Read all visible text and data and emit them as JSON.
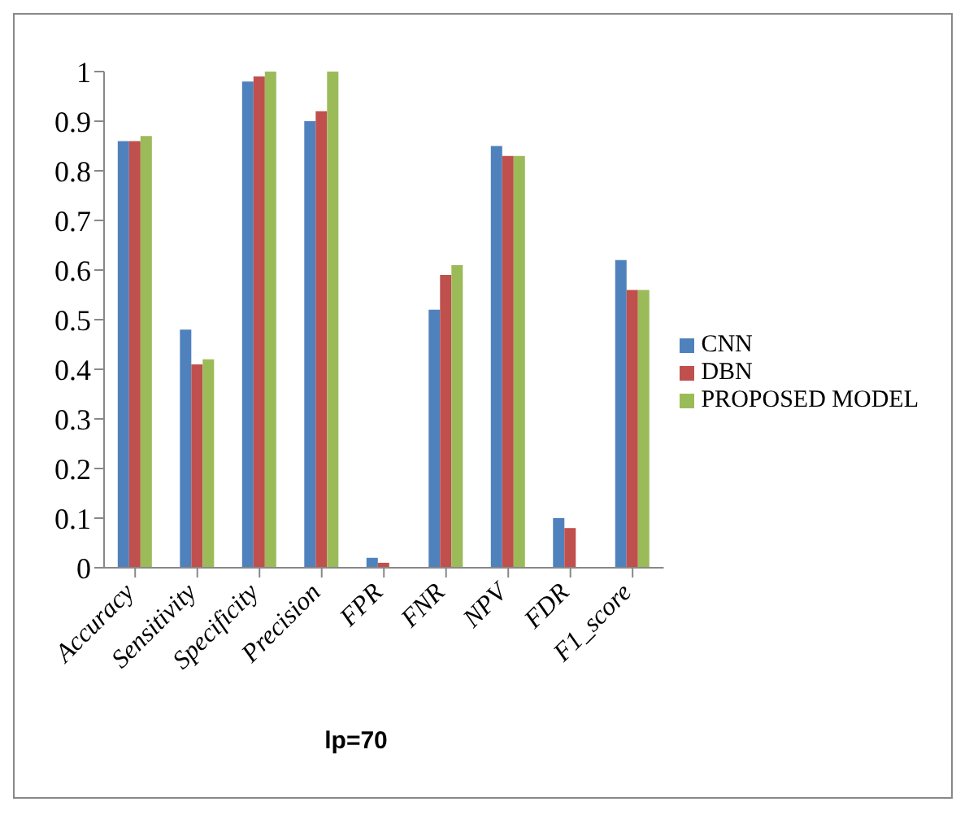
{
  "chart_data": {
    "type": "bar",
    "xlabel": "lp=70",
    "categories": [
      "Accuracy",
      "Sensitivity",
      "Specificity",
      "Precision",
      "FPR",
      "FNR",
      "NPV",
      "FDR",
      "F1_score"
    ],
    "series": [
      {
        "name": "CNN",
        "color": "#4f81bd",
        "values": [
          0.86,
          0.48,
          0.98,
          0.9,
          0.02,
          0.52,
          0.85,
          0.1,
          0.62
        ]
      },
      {
        "name": "DBN",
        "color": "#c0504d",
        "values": [
          0.86,
          0.41,
          0.99,
          0.92,
          0.01,
          0.59,
          0.83,
          0.08,
          0.56
        ]
      },
      {
        "name": "PROPOSED MODEL",
        "color": "#9bbb59",
        "values": [
          0.87,
          0.42,
          1,
          1,
          0,
          0.61,
          0.83,
          0,
          0.56
        ]
      }
    ],
    "ylim": [
      0,
      1
    ],
    "yticks": [
      0,
      0.1,
      0.2,
      0.3,
      0.4,
      0.5,
      0.6,
      0.7,
      0.8,
      0.9,
      1
    ],
    "grid": false,
    "legend": "right"
  }
}
